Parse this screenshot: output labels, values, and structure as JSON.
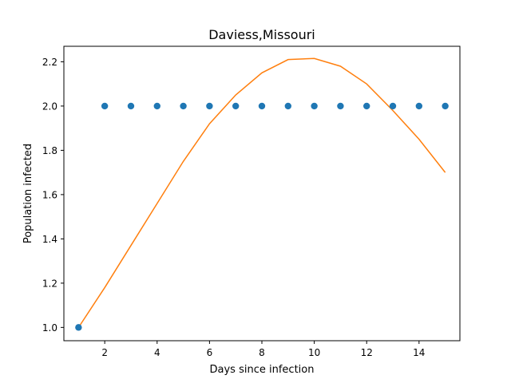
{
  "chart_data": {
    "type": "scatter",
    "title": "Daviess,Missouri",
    "xlabel": "Days since infection",
    "ylabel": "Population infected",
    "xlim": [
      0.44,
      15.56
    ],
    "ylim": [
      0.94,
      2.27
    ],
    "x_ticks": [
      2,
      4,
      6,
      8,
      10,
      12,
      14
    ],
    "y_ticks": [
      1.0,
      1.2,
      1.4,
      1.6,
      1.8,
      2.0,
      2.2
    ],
    "x_tick_labels": [
      "2",
      "4",
      "6",
      "8",
      "10",
      "12",
      "14"
    ],
    "y_tick_labels": [
      "1.0",
      "1.2",
      "1.4",
      "1.6",
      "1.8",
      "2.0",
      "2.2"
    ],
    "grid": false,
    "series": [
      {
        "kind": "scatter",
        "color": "#1f77b4",
        "x": [
          1,
          2,
          3,
          4,
          5,
          6,
          7,
          8,
          9,
          10,
          11,
          12,
          13,
          14,
          15
        ],
        "y": [
          1.0,
          2.0,
          2.0,
          2.0,
          2.0,
          2.0,
          2.0,
          2.0,
          2.0,
          2.0,
          2.0,
          2.0,
          2.0,
          2.0,
          2.0
        ]
      },
      {
        "kind": "line",
        "color": "#ff7f0e",
        "x": [
          1,
          2,
          3,
          4,
          5,
          6,
          7,
          8,
          9,
          10,
          11,
          12,
          13,
          14,
          15
        ],
        "y": [
          1.0,
          1.18,
          1.37,
          1.56,
          1.75,
          1.92,
          2.05,
          2.15,
          2.21,
          2.215,
          2.18,
          2.1,
          1.98,
          1.85,
          1.7
        ]
      }
    ]
  }
}
